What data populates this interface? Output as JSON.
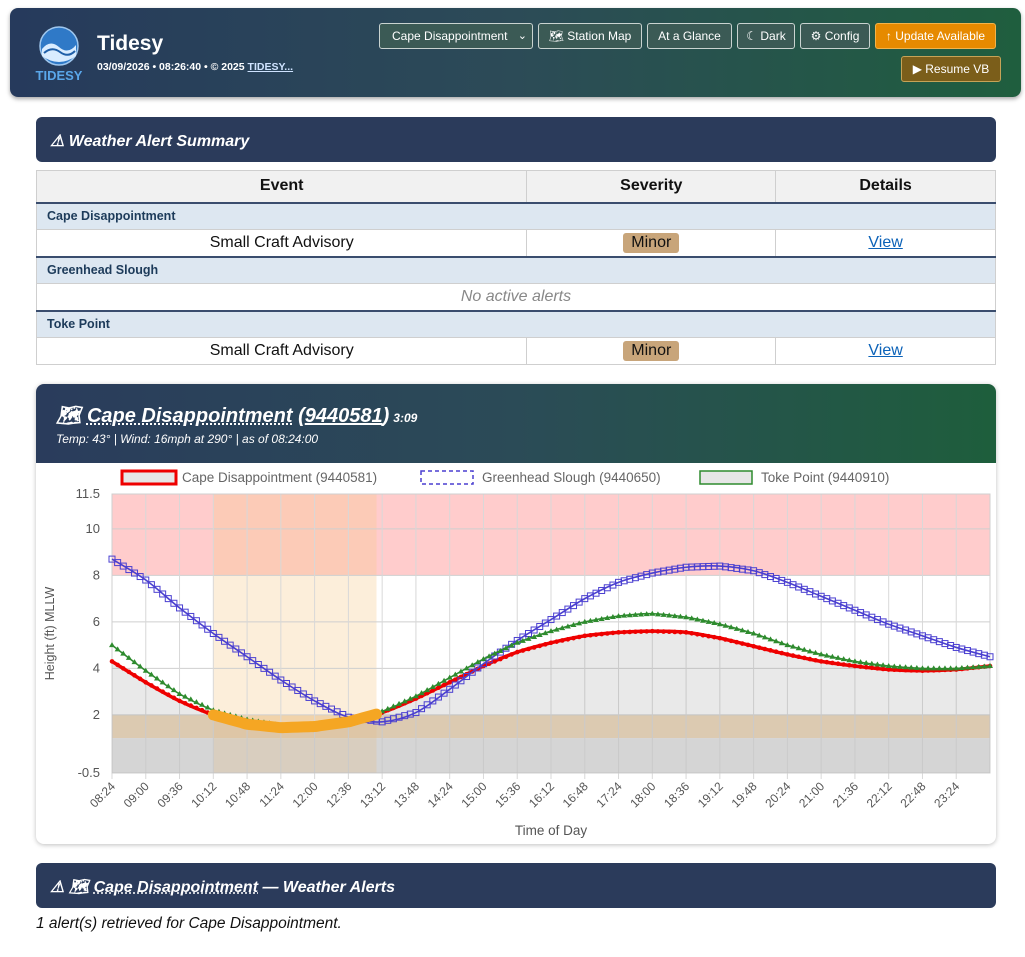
{
  "header": {
    "title": "Tidesy",
    "logo_text": "TIDESY",
    "subtitle": "03/09/2026 • 08:26:40 • © 2025",
    "subtitle_link": "TIDESY...",
    "station_select": "Cape Disappointment",
    "buttons": {
      "station_map": "🗺 Station Map",
      "at_a_glance": "At a Glance",
      "dark": "☾ Dark",
      "config": "⚙ Config",
      "update": "↑ Update Available",
      "resume": "▶ Resume VB"
    }
  },
  "alert_summary": {
    "title": "⚠ Weather Alert Summary",
    "columns": [
      "Event",
      "Severity",
      "Details"
    ],
    "groups": [
      {
        "station": "Cape Disappointment",
        "event": "Small Craft Advisory",
        "severity": "Minor",
        "details": "View"
      },
      {
        "station": "Greenhead Slough",
        "none": "No active alerts"
      },
      {
        "station": "Toke Point",
        "event": "Small Craft Advisory",
        "severity": "Minor",
        "details": "View"
      }
    ]
  },
  "chart_panel": {
    "station_icon": "🗺",
    "station_name": "Cape Disappointment",
    "station_code": "9440581",
    "time": "3:09",
    "info": "Temp: 43°  |  Wind: 16mph at 290°  |  as of 08:24:00"
  },
  "chart_data": {
    "type": "line",
    "xlabel": "Time of Day",
    "ylabel": "Height (ft) MLLW",
    "ylim": [
      -0.5,
      11.5
    ],
    "yticks": [
      11.5,
      10,
      8,
      6,
      4,
      2,
      -0.5
    ],
    "x_ticks": [
      "08:24",
      "09:00",
      "09:36",
      "10:12",
      "10:48",
      "11:24",
      "12:00",
      "12:36",
      "13:12",
      "13:48",
      "14:24",
      "15:00",
      "15:36",
      "16:12",
      "16:48",
      "17:24",
      "18:00",
      "18:36",
      "19:12",
      "19:48",
      "20:24",
      "21:00",
      "21:36",
      "22:12",
      "22:48",
      "23:24"
    ],
    "x_range_hours": [
      8.4,
      24.0
    ],
    "legend_position": "top",
    "series": [
      {
        "name": "Cape Disappointment (9440581)",
        "color": "#ee0000",
        "x": [
          8.4,
          9.0,
          9.6,
          10.2,
          10.8,
          11.4,
          12.0,
          12.6,
          13.2,
          13.8,
          14.4,
          15.0,
          15.6,
          16.2,
          16.8,
          17.4,
          18.0,
          18.6,
          19.2,
          19.8,
          20.4,
          21.0,
          21.6,
          22.2,
          22.8,
          23.4,
          24.0
        ],
        "values": [
          4.3,
          3.4,
          2.6,
          2.0,
          1.6,
          1.45,
          1.5,
          1.7,
          2.1,
          2.7,
          3.4,
          4.1,
          4.7,
          5.1,
          5.4,
          5.55,
          5.6,
          5.55,
          5.3,
          4.95,
          4.6,
          4.3,
          4.1,
          3.95,
          3.9,
          3.95,
          4.1
        ]
      },
      {
        "name": "Greenhead Slough (9440650)",
        "color": "#4a3fd0",
        "x": [
          8.4,
          9.0,
          9.6,
          10.2,
          10.8,
          11.4,
          12.0,
          12.6,
          13.2,
          13.8,
          14.4,
          15.0,
          15.6,
          16.2,
          16.8,
          17.4,
          18.0,
          18.6,
          19.2,
          19.8,
          20.4,
          21.0,
          21.6,
          22.2,
          22.8,
          23.4,
          24.0
        ],
        "values": [
          8.7,
          7.8,
          6.6,
          5.5,
          4.5,
          3.5,
          2.6,
          1.9,
          1.7,
          2.1,
          3.1,
          4.2,
          5.2,
          6.1,
          7.0,
          7.7,
          8.1,
          8.35,
          8.4,
          8.2,
          7.7,
          7.1,
          6.5,
          5.9,
          5.4,
          4.9,
          4.5
        ]
      },
      {
        "name": "Toke Point (9440910)",
        "color": "#2e8b2e",
        "x": [
          8.4,
          9.0,
          9.6,
          10.2,
          10.8,
          11.4,
          12.0,
          12.6,
          13.2,
          13.8,
          14.4,
          15.0,
          15.6,
          16.2,
          16.8,
          17.4,
          18.0,
          18.6,
          19.2,
          19.8,
          20.4,
          21.0,
          21.6,
          22.2,
          22.8,
          23.4,
          24.0
        ],
        "values": [
          5.0,
          3.9,
          2.9,
          2.2,
          1.8,
          1.55,
          1.55,
          1.75,
          2.15,
          2.8,
          3.6,
          4.4,
          5.1,
          5.6,
          6.0,
          6.25,
          6.35,
          6.2,
          5.9,
          5.5,
          5.0,
          4.6,
          4.3,
          4.1,
          4.0,
          4.0,
          4.1
        ]
      }
    ],
    "highlight_x": [
      10.2,
      13.1
    ],
    "low_tide_marker_color": "#f5a623",
    "bands": [
      {
        "from": 8,
        "to": 11.5,
        "color": "#ffcccc"
      },
      {
        "from": 1,
        "to": 2,
        "color": "#efd8b8"
      },
      {
        "from": -0.5,
        "to": 1,
        "color": "#e6e6e6"
      }
    ]
  },
  "alerts_panel": {
    "title_prefix": "⚠ 🗺",
    "station": "Cape Disappointment",
    "title_suffix": "— Weather Alerts",
    "summary": "1 alert(s) retrieved for Cape Disappointment."
  }
}
